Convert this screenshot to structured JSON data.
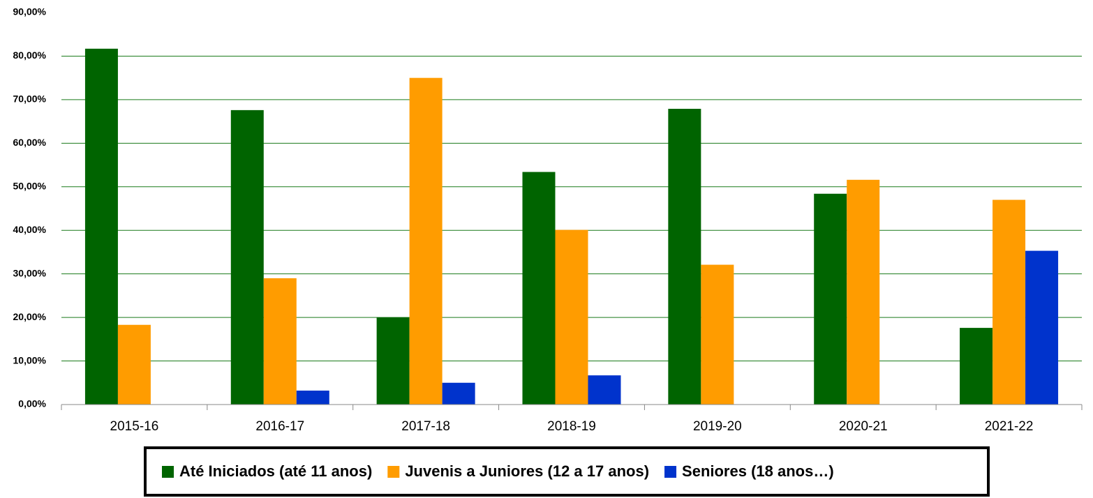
{
  "chart_data": {
    "type": "bar",
    "categories": [
      "2015-16",
      "2016-17",
      "2017-18",
      "2018-19",
      "2019-20",
      "2020-21",
      "2021-22"
    ],
    "series": [
      {
        "name": "Até Iniciados (até 11 anos)",
        "color": "#006400",
        "values": [
          81.7,
          67.6,
          20.0,
          53.4,
          67.9,
          48.4,
          17.6
        ]
      },
      {
        "name": "Juvenis a Juniores (12 a 17 anos)",
        "color": "#ff9c00",
        "values": [
          18.3,
          29.0,
          75.0,
          40.1,
          32.1,
          51.6,
          47.0
        ]
      },
      {
        "name": "Seniores (18 anos…)",
        "color": "#0033cc",
        "values": [
          null,
          3.2,
          5.0,
          6.7,
          null,
          null,
          35.3
        ]
      }
    ],
    "ylim": [
      0,
      90
    ],
    "yticks": [
      {
        "value": 0,
        "label": "0,00%"
      },
      {
        "value": 10,
        "label": "10,00%"
      },
      {
        "value": 20,
        "label": "20,00%"
      },
      {
        "value": 30,
        "label": "30,00%"
      },
      {
        "value": 40,
        "label": "40,00%"
      },
      {
        "value": 50,
        "label": "50,00%"
      },
      {
        "value": 60,
        "label": "60,00%"
      },
      {
        "value": 70,
        "label": "70,00%"
      },
      {
        "value": 80,
        "label": "80,00%"
      },
      {
        "value": 90,
        "label": "90,00%"
      }
    ],
    "grid": true,
    "grid_color": "#1a7a1a",
    "legend": "bottom"
  }
}
